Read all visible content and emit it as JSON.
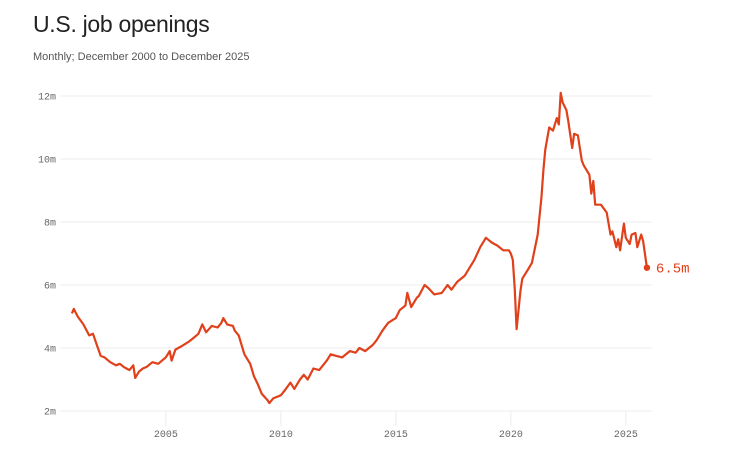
{
  "title": "U.S. job openings",
  "subtitle": "Monthly; December 2000 to December 2025",
  "colors": {
    "line": "#e0401a",
    "grid": "#ececec",
    "tick_text": "#666666"
  },
  "chart_data": {
    "type": "line",
    "title": "U.S. job openings",
    "subtitle": "Monthly; December 2000 to December 2025",
    "xlabel": "",
    "ylabel": "",
    "xlim": [
      2000.92,
      2025.92
    ],
    "ylim": [
      2,
      12
    ],
    "grid": true,
    "x_ticks": [
      {
        "value": 2005,
        "label": "2005"
      },
      {
        "value": 2010,
        "label": "2010"
      },
      {
        "value": 2015,
        "label": "2015"
      },
      {
        "value": 2020,
        "label": "2020"
      },
      {
        "value": 2025,
        "label": "2025"
      }
    ],
    "y_ticks": [
      {
        "value": 2,
        "label": "2m"
      },
      {
        "value": 4,
        "label": "4m"
      },
      {
        "value": 6,
        "label": "6m"
      },
      {
        "value": 8,
        "label": "8m"
      },
      {
        "value": 10,
        "label": "10m"
      },
      {
        "value": 12,
        "label": "12m"
      }
    ],
    "end_label": "6.5m",
    "series": [
      {
        "unit": "millions",
        "points": [
          [
            "2000-12",
            5.1
          ],
          [
            "2001-01",
            5.24
          ],
          [
            "2001-03",
            5.0
          ],
          [
            "2001-06",
            4.75
          ],
          [
            "2001-09",
            4.4
          ],
          [
            "2001-11",
            4.45
          ],
          [
            "2002-01",
            4.1
          ],
          [
            "2002-03",
            3.75
          ],
          [
            "2002-05",
            3.7
          ],
          [
            "2002-08",
            3.55
          ],
          [
            "2002-11",
            3.45
          ],
          [
            "2003-01",
            3.5
          ],
          [
            "2003-03",
            3.4
          ],
          [
            "2003-06",
            3.3
          ],
          [
            "2003-08",
            3.45
          ],
          [
            "2003-09",
            3.05
          ],
          [
            "2003-11",
            3.25
          ],
          [
            "2004-01",
            3.35
          ],
          [
            "2004-03",
            3.4
          ],
          [
            "2004-06",
            3.55
          ],
          [
            "2004-09",
            3.5
          ],
          [
            "2005-01",
            3.7
          ],
          [
            "2005-03",
            3.9
          ],
          [
            "2005-04",
            3.6
          ],
          [
            "2005-06",
            3.95
          ],
          [
            "2005-09",
            4.05
          ],
          [
            "2006-01",
            4.2
          ],
          [
            "2006-03",
            4.3
          ],
          [
            "2006-06",
            4.45
          ],
          [
            "2006-08",
            4.75
          ],
          [
            "2006-10",
            4.5
          ],
          [
            "2007-01",
            4.7
          ],
          [
            "2007-04",
            4.65
          ],
          [
            "2007-06",
            4.8
          ],
          [
            "2007-07",
            4.95
          ],
          [
            "2007-09",
            4.75
          ],
          [
            "2007-12",
            4.7
          ],
          [
            "2008-01",
            4.55
          ],
          [
            "2008-03",
            4.4
          ],
          [
            "2008-06",
            3.8
          ],
          [
            "2008-09",
            3.5
          ],
          [
            "2008-11",
            3.1
          ],
          [
            "2009-01",
            2.85
          ],
          [
            "2009-03",
            2.55
          ],
          [
            "2009-06",
            2.35
          ],
          [
            "2009-07",
            2.25
          ],
          [
            "2009-09",
            2.4
          ],
          [
            "2010-01",
            2.5
          ],
          [
            "2010-03",
            2.65
          ],
          [
            "2010-06",
            2.9
          ],
          [
            "2010-08",
            2.7
          ],
          [
            "2010-11",
            3.0
          ],
          [
            "2011-01",
            3.15
          ],
          [
            "2011-03",
            3.0
          ],
          [
            "2011-06",
            3.35
          ],
          [
            "2011-09",
            3.3
          ],
          [
            "2012-01",
            3.6
          ],
          [
            "2012-03",
            3.8
          ],
          [
            "2012-06",
            3.75
          ],
          [
            "2012-09",
            3.7
          ],
          [
            "2013-01",
            3.9
          ],
          [
            "2013-04",
            3.85
          ],
          [
            "2013-06",
            4.0
          ],
          [
            "2013-09",
            3.9
          ],
          [
            "2014-01",
            4.1
          ],
          [
            "2014-03",
            4.25
          ],
          [
            "2014-06",
            4.55
          ],
          [
            "2014-09",
            4.8
          ],
          [
            "2015-01",
            4.95
          ],
          [
            "2015-03",
            5.2
          ],
          [
            "2015-06",
            5.35
          ],
          [
            "2015-07",
            5.75
          ],
          [
            "2015-09",
            5.3
          ],
          [
            "2015-12",
            5.6
          ],
          [
            "2016-01",
            5.65
          ],
          [
            "2016-04",
            6.0
          ],
          [
            "2016-06",
            5.9
          ],
          [
            "2016-09",
            5.7
          ],
          [
            "2017-01",
            5.75
          ],
          [
            "2017-04",
            6.0
          ],
          [
            "2017-06",
            5.85
          ],
          [
            "2017-09",
            6.1
          ],
          [
            "2018-01",
            6.3
          ],
          [
            "2018-04",
            6.6
          ],
          [
            "2018-06",
            6.8
          ],
          [
            "2018-09",
            7.2
          ],
          [
            "2018-12",
            7.5
          ],
          [
            "2019-03",
            7.35
          ],
          [
            "2019-06",
            7.25
          ],
          [
            "2019-09",
            7.1
          ],
          [
            "2019-12",
            7.1
          ],
          [
            "2020-01",
            7.0
          ],
          [
            "2020-02",
            6.8
          ],
          [
            "2020-03",
            5.9
          ],
          [
            "2020-04",
            4.6
          ],
          [
            "2020-06",
            5.8
          ],
          [
            "2020-07",
            6.2
          ],
          [
            "2020-10",
            6.5
          ],
          [
            "2020-12",
            6.7
          ],
          [
            "2021-03",
            7.6
          ],
          [
            "2021-05",
            8.8
          ],
          [
            "2021-06",
            9.65
          ],
          [
            "2021-07",
            10.3
          ],
          [
            "2021-09",
            11.0
          ],
          [
            "2021-11",
            10.9
          ],
          [
            "2022-01",
            11.3
          ],
          [
            "2022-02",
            11.1
          ],
          [
            "2022-03",
            12.1
          ],
          [
            "2022-04",
            11.8
          ],
          [
            "2022-06",
            11.55
          ],
          [
            "2022-07",
            11.2
          ],
          [
            "2022-09",
            10.35
          ],
          [
            "2022-10",
            10.8
          ],
          [
            "2022-12",
            10.75
          ],
          [
            "2023-02",
            9.95
          ],
          [
            "2023-03",
            9.8
          ],
          [
            "2023-06",
            9.5
          ],
          [
            "2023-07",
            8.9
          ],
          [
            "2023-08",
            9.3
          ],
          [
            "2023-09",
            8.55
          ],
          [
            "2023-12",
            8.55
          ],
          [
            "2024-03",
            8.3
          ],
          [
            "2024-05",
            7.6
          ],
          [
            "2024-06",
            7.7
          ],
          [
            "2024-08",
            7.2
          ],
          [
            "2024-09",
            7.45
          ],
          [
            "2024-10",
            7.1
          ],
          [
            "2024-12",
            7.95
          ],
          [
            "2025-01",
            7.5
          ],
          [
            "2025-03",
            7.3
          ],
          [
            "2025-04",
            7.6
          ],
          [
            "2025-06",
            7.65
          ],
          [
            "2025-07",
            7.2
          ],
          [
            "2025-09",
            7.6
          ],
          [
            "2025-10",
            7.4
          ],
          [
            "2025-12",
            6.55
          ]
        ]
      }
    ]
  }
}
